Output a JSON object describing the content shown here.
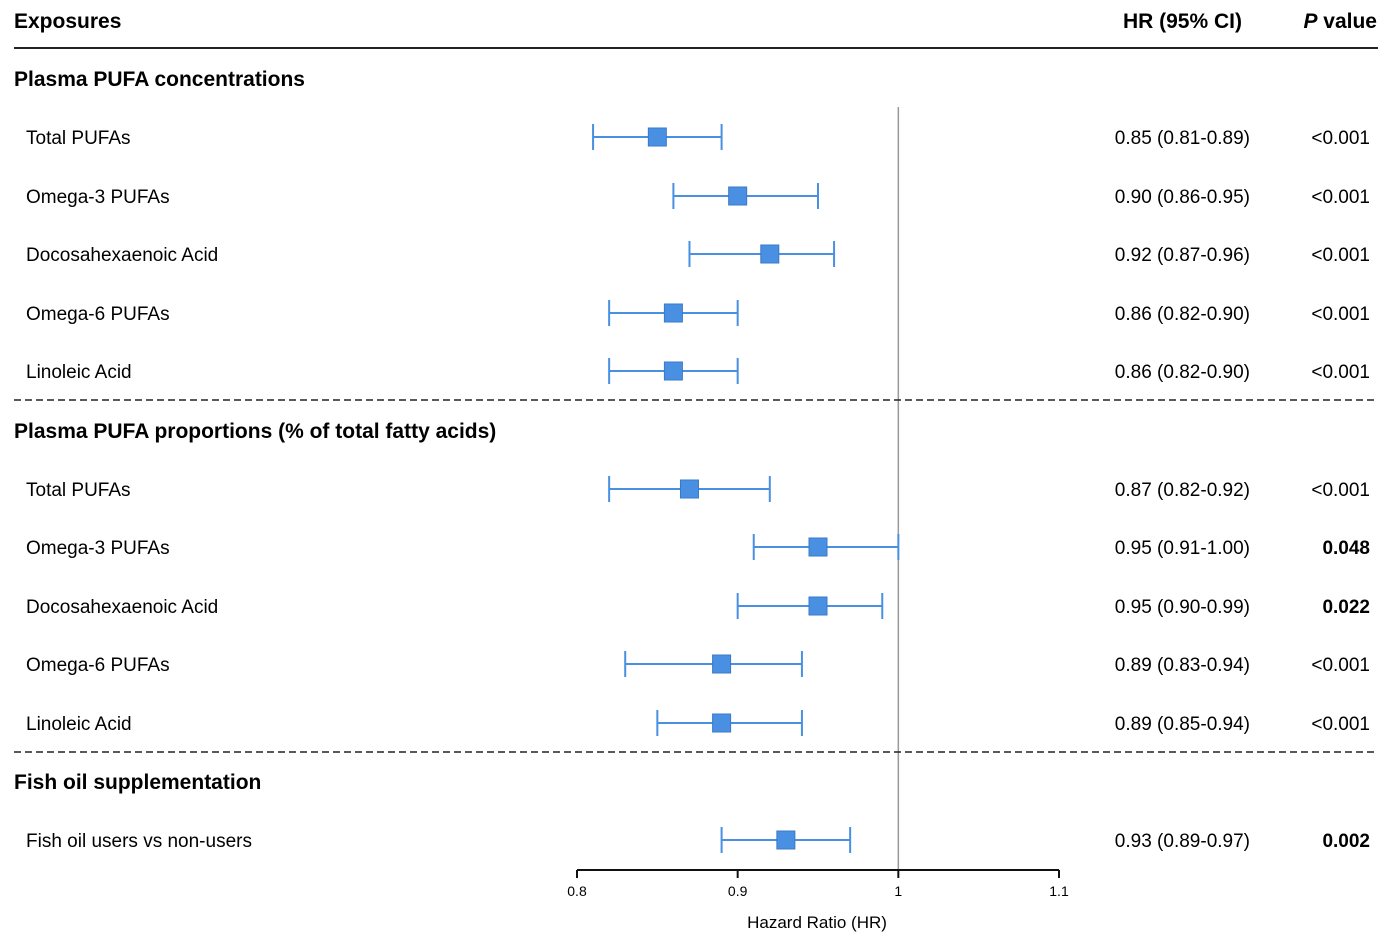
{
  "header": {
    "exposures": "Exposures",
    "hr_ci": "HR (95% CI)",
    "p_italic": "P",
    "p_rest": " value"
  },
  "chart_data": {
    "type": "forest",
    "xlabel": "Hazard Ratio (HR)",
    "xlim": [
      0.8,
      1.1
    ],
    "xticks": [
      "0.8",
      "0.9",
      "1",
      "1.1"
    ],
    "reference_line": 1,
    "marker_color": "#4a90e2",
    "groups": [
      {
        "title": "Plasma PUFA concentrations",
        "rows": [
          {
            "label": "Total PUFAs",
            "hr": 0.85,
            "lo": 0.81,
            "hi": 0.89,
            "ci_text": "0.85 (0.81-0.89)",
            "p": "<0.001"
          },
          {
            "label": "Omega-3 PUFAs",
            "hr": 0.9,
            "lo": 0.86,
            "hi": 0.95,
            "ci_text": "0.90 (0.86-0.95)",
            "p": "<0.001"
          },
          {
            "label": "Docosahexaenoic Acid",
            "hr": 0.92,
            "lo": 0.87,
            "hi": 0.96,
            "ci_text": "0.92 (0.87-0.96)",
            "p": "<0.001"
          },
          {
            "label": "Omega-6 PUFAs",
            "hr": 0.86,
            "lo": 0.82,
            "hi": 0.9,
            "ci_text": "0.86 (0.82-0.90)",
            "p": "<0.001"
          },
          {
            "label": "Linoleic Acid",
            "hr": 0.86,
            "lo": 0.82,
            "hi": 0.9,
            "ci_text": "0.86 (0.82-0.90)",
            "p": "<0.001"
          }
        ]
      },
      {
        "title": "Plasma PUFA proportions (% of total fatty acids)",
        "rows": [
          {
            "label": "Total PUFAs",
            "hr": 0.87,
            "lo": 0.82,
            "hi": 0.92,
            "ci_text": "0.87 (0.82-0.92)",
            "p": "<0.001"
          },
          {
            "label": "Omega-3 PUFAs",
            "hr": 0.95,
            "lo": 0.91,
            "hi": 1.0,
            "ci_text": "0.95 (0.91-1.00)",
            "p": "0.048"
          },
          {
            "label": "Docosahexaenoic Acid",
            "hr": 0.95,
            "lo": 0.9,
            "hi": 0.99,
            "ci_text": "0.95 (0.90-0.99)",
            "p": "0.022"
          },
          {
            "label": "Omega-6 PUFAs",
            "hr": 0.89,
            "lo": 0.83,
            "hi": 0.94,
            "ci_text": "0.89 (0.83-0.94)",
            "p": "<0.001"
          },
          {
            "label": "Linoleic Acid",
            "hr": 0.89,
            "lo": 0.85,
            "hi": 0.94,
            "ci_text": "0.89 (0.85-0.94)",
            "p": "<0.001"
          }
        ]
      },
      {
        "title": "Fish oil supplementation",
        "rows": [
          {
            "label": "Fish oil users vs non-users",
            "hr": 0.93,
            "lo": 0.89,
            "hi": 0.97,
            "ci_text": "0.93 (0.89-0.97)",
            "p": "0.002"
          }
        ]
      }
    ]
  }
}
